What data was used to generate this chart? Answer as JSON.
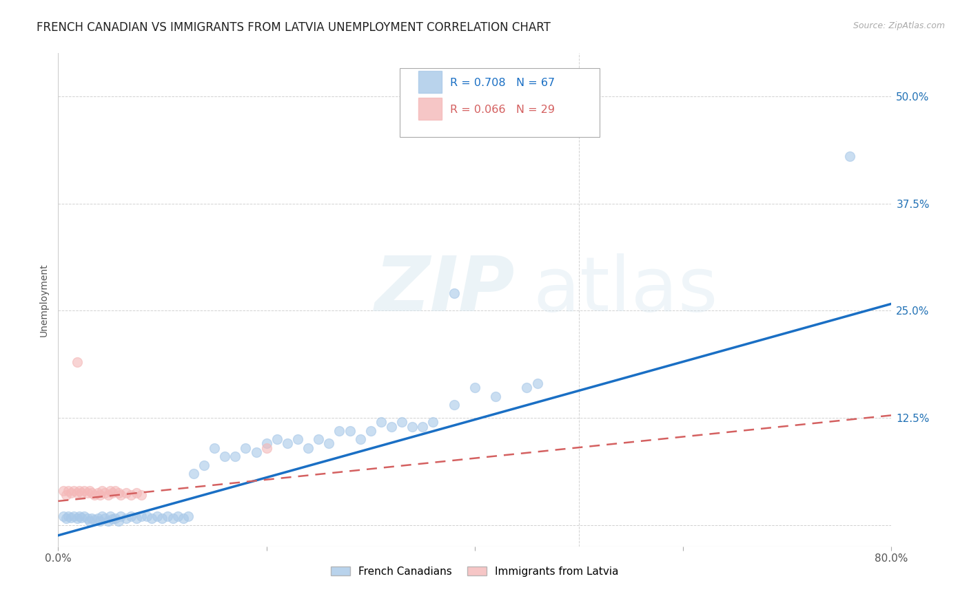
{
  "title": "FRENCH CANADIAN VS IMMIGRANTS FROM LATVIA UNEMPLOYMENT CORRELATION CHART",
  "source": "Source: ZipAtlas.com",
  "ylabel": "Unemployment",
  "watermark": "ZIPatlas",
  "xlim": [
    0.0,
    0.8
  ],
  "ylim": [
    -0.025,
    0.55
  ],
  "blue_R": 0.708,
  "blue_N": 67,
  "pink_R": 0.066,
  "pink_N": 29,
  "blue_line_x": [
    0.0,
    0.8
  ],
  "blue_line_y": [
    -0.012,
    0.258
  ],
  "pink_line_x": [
    0.0,
    0.8
  ],
  "pink_line_y": [
    0.028,
    0.128
  ],
  "blue_scatter_x": [
    0.005,
    0.008,
    0.01,
    0.012,
    0.015,
    0.018,
    0.02,
    0.022,
    0.025,
    0.028,
    0.03,
    0.032,
    0.035,
    0.038,
    0.04,
    0.042,
    0.045,
    0.048,
    0.05,
    0.052,
    0.055,
    0.058,
    0.06,
    0.065,
    0.07,
    0.075,
    0.08,
    0.085,
    0.09,
    0.095,
    0.1,
    0.105,
    0.11,
    0.115,
    0.12,
    0.125,
    0.13,
    0.14,
    0.15,
    0.16,
    0.17,
    0.18,
    0.19,
    0.2,
    0.21,
    0.22,
    0.23,
    0.24,
    0.25,
    0.26,
    0.27,
    0.28,
    0.29,
    0.3,
    0.31,
    0.32,
    0.33,
    0.34,
    0.35,
    0.36,
    0.38,
    0.4,
    0.42,
    0.45,
    0.46,
    0.76,
    0.38
  ],
  "blue_scatter_y": [
    0.01,
    0.008,
    0.01,
    0.009,
    0.01,
    0.008,
    0.01,
    0.009,
    0.01,
    0.008,
    0.005,
    0.008,
    0.006,
    0.008,
    0.005,
    0.01,
    0.008,
    0.005,
    0.01,
    0.007,
    0.008,
    0.005,
    0.01,
    0.008,
    0.01,
    0.008,
    0.01,
    0.01,
    0.008,
    0.01,
    0.008,
    0.01,
    0.008,
    0.01,
    0.008,
    0.01,
    0.06,
    0.07,
    0.09,
    0.08,
    0.08,
    0.09,
    0.085,
    0.095,
    0.1,
    0.095,
    0.1,
    0.09,
    0.1,
    0.095,
    0.11,
    0.11,
    0.1,
    0.11,
    0.12,
    0.115,
    0.12,
    0.115,
    0.115,
    0.12,
    0.14,
    0.16,
    0.15,
    0.16,
    0.165,
    0.43,
    0.27
  ],
  "pink_scatter_x": [
    0.005,
    0.008,
    0.01,
    0.012,
    0.015,
    0.018,
    0.02,
    0.022,
    0.025,
    0.028,
    0.03,
    0.032,
    0.035,
    0.038,
    0.04,
    0.042,
    0.045,
    0.048,
    0.05,
    0.052,
    0.055,
    0.058,
    0.06,
    0.065,
    0.07,
    0.075,
    0.08,
    0.2,
    0.018
  ],
  "pink_scatter_y": [
    0.04,
    0.035,
    0.04,
    0.038,
    0.04,
    0.038,
    0.04,
    0.038,
    0.04,
    0.038,
    0.04,
    0.038,
    0.035,
    0.038,
    0.035,
    0.04,
    0.038,
    0.035,
    0.04,
    0.038,
    0.04,
    0.038,
    0.035,
    0.038,
    0.035,
    0.038,
    0.035,
    0.09,
    0.19
  ],
  "blue_color": "#a8c8e8",
  "pink_color": "#f4b8b8",
  "blue_line_color": "#1a6fc4",
  "pink_line_color": "#d46060",
  "tick_color_right": "#2171b5",
  "background_color": "#ffffff",
  "grid_color": "#cccccc",
  "title_fontsize": 12,
  "label_fontsize": 10,
  "tick_fontsize": 11
}
